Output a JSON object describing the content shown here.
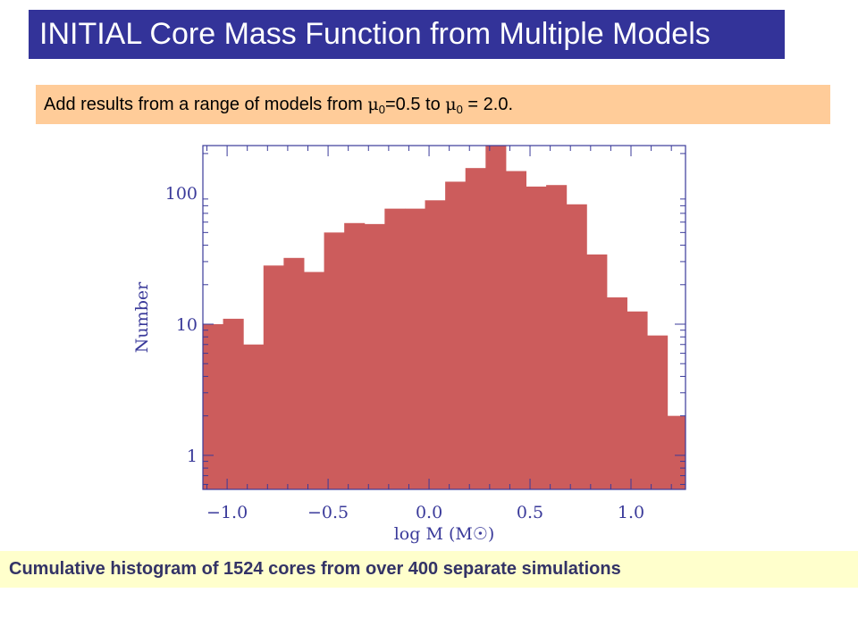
{
  "header": {
    "title": "INITIAL Core Mass Function from Multiple Models"
  },
  "subheader": {
    "text_before": "Add results from a range of models from ",
    "mu_symbol": "μ",
    "subscript": "0",
    "text_middle": "=0.5 to ",
    "text_end": " = 2.0."
  },
  "caption": {
    "text": "Cumulative histogram of 1524 cores from over 400 separate simulations"
  },
  "colors": {
    "title_bg": "#333399",
    "subtitle_bg": "#ffcc99",
    "caption_bg": "#ffffcc",
    "bar_fill": "#cc5c5c",
    "axis": "#3a3a9a"
  },
  "chart_data": {
    "type": "bar",
    "xlabel": "log M (M☉)",
    "ylabel": "Number",
    "yscale": "log",
    "xlim": [
      -1.12,
      1.27
    ],
    "ylim": [
      0.55,
      230
    ],
    "x_ticks": [
      -1.0,
      -0.5,
      0.0,
      0.5,
      1.0
    ],
    "x_tick_labels": [
      "−1.0",
      "−0.5",
      "0.0",
      "0.5",
      "1.0"
    ],
    "y_ticks": [
      1,
      10,
      100
    ],
    "y_tick_labels": [
      "1",
      "10",
      "100"
    ],
    "bin_width": 0.1,
    "bin_edges": [
      -1.12,
      -1.02,
      -0.92,
      -0.82,
      -0.72,
      -0.62,
      -0.52,
      -0.42,
      -0.32,
      -0.22,
      -0.12,
      -0.02,
      0.08,
      0.18,
      0.28,
      0.38,
      0.48,
      0.58,
      0.68,
      0.78,
      0.88,
      0.98,
      1.08,
      1.18,
      1.27
    ],
    "values": [
      10,
      11,
      7,
      28,
      32,
      25,
      50,
      59,
      58,
      76,
      76,
      88,
      122,
      155,
      230,
      147,
      112,
      115,
      82,
      34,
      16,
      12.5,
      8.2,
      2
    ]
  }
}
